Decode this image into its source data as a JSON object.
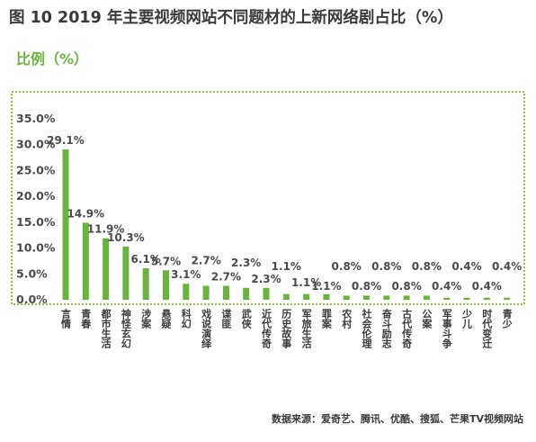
{
  "title": "图 10 2019 年主要视频网站不同题材的上新网络剧占比（%）",
  "source": "数据来源：爱奇艺、腾讯、优酷、搜狐、芒果TV视频网站",
  "colors": {
    "bar": "#6ab43e",
    "frame": "#8cc63f",
    "title": "#3a3a3a"
  },
  "chart_data": {
    "type": "bar",
    "title": "图 10 2019 年主要视频网站不同题材的上新网络剧占比（%）",
    "ylabel": "比例（%）",
    "xlabel": "",
    "ylim": [
      0,
      35
    ],
    "yticks": [
      "0.0%",
      "5.0%",
      "10.0%",
      "15.0%",
      "20.0%",
      "25.0%",
      "30.0%",
      "35.0%"
    ],
    "categories": [
      "言情",
      "青春",
      "都市生活",
      "神怪玄幻",
      "涉案",
      "悬疑",
      "科幻",
      "戏说演绎",
      "谍匪",
      "武侠",
      "近代传奇",
      "历史故事",
      "军旅生活",
      "罪案",
      "农村",
      "社会伦理",
      "奋斗励志",
      "古代传奇",
      "公案",
      "军事斗争",
      "少儿",
      "时代变迁",
      "青少"
    ],
    "values": [
      29.1,
      14.9,
      11.9,
      10.3,
      6.1,
      5.7,
      3.1,
      2.7,
      2.7,
      2.3,
      2.3,
      1.1,
      1.1,
      1.1,
      0.8,
      0.8,
      0.8,
      0.8,
      0.8,
      0.4,
      0.4,
      0.4,
      0.4
    ],
    "value_labels": [
      "29.1%",
      "14.9%",
      "11.9%",
      "10.3%",
      "6.1%",
      "5.7%",
      "3.1%",
      "2.7%",
      "2.7%",
      "2.3%",
      "2.3%",
      "1.1%",
      "1.1%",
      "1.1%",
      "0.8%",
      "0.8%",
      "0.8%",
      "0.8%",
      "0.8%",
      "0.4%",
      "0.4%",
      "0.4%",
      "0.4%"
    ],
    "grid": false,
    "legend": "none"
  }
}
